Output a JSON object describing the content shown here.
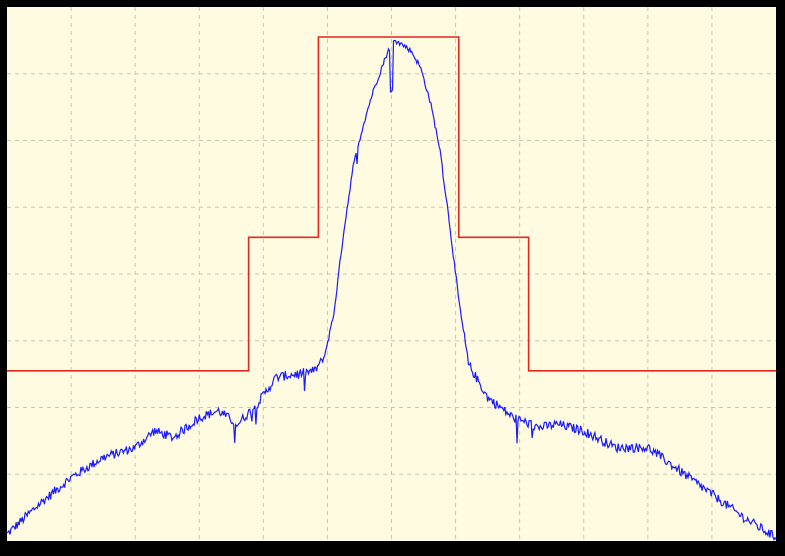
{
  "colors": {
    "background": "#fffbe0",
    "frame": "#000000",
    "grid": "#c8c8a8",
    "spectrum": "#1a1aff",
    "mask": "#e0281e"
  },
  "chart_data": {
    "type": "line",
    "title": "",
    "xlabel": "",
    "ylabel": "",
    "grid": true,
    "legend": "none",
    "xlim": [
      0,
      12
    ],
    "ylim": [
      0,
      8
    ],
    "x_divisions": 12,
    "y_divisions": 8,
    "series": [
      {
        "kind": "step",
        "color_key": "mask",
        "x": [
          0,
          3.77,
          3.77,
          4.86,
          4.86,
          7.05,
          7.05,
          8.14,
          8.14,
          12
        ],
        "values": [
          2.55,
          2.55,
          4.55,
          4.55,
          7.55,
          7.55,
          4.55,
          4.55,
          2.55,
          2.55
        ]
      },
      {
        "kind": "noisy",
        "color_key": "spectrum",
        "x": [
          0,
          0.5,
          1.0,
          1.5,
          2.0,
          2.3,
          2.6,
          3.0,
          3.3,
          3.6,
          3.9,
          4.2,
          4.5,
          4.8,
          4.95,
          5.1,
          5.25,
          5.4,
          5.55,
          5.7,
          5.85,
          5.95,
          6.05,
          6.15,
          6.3,
          6.45,
          6.6,
          6.75,
          6.9,
          7.05,
          7.2,
          7.5,
          7.9,
          8.3,
          8.6,
          9.0,
          9.5,
          10.0,
          10.5,
          11.0,
          11.5,
          12.0
        ],
        "values": [
          0.1,
          0.55,
          0.95,
          1.25,
          1.4,
          1.65,
          1.55,
          1.85,
          1.95,
          1.75,
          2.05,
          2.45,
          2.5,
          2.55,
          2.75,
          3.4,
          4.6,
          5.6,
          6.2,
          6.7,
          7.1,
          7.35,
          7.5,
          7.45,
          7.35,
          7.1,
          6.6,
          5.9,
          4.8,
          3.6,
          2.65,
          2.15,
          1.85,
          1.7,
          1.75,
          1.65,
          1.4,
          1.4,
          1.05,
          0.7,
          0.35,
          0.05
        ]
      }
    ]
  }
}
